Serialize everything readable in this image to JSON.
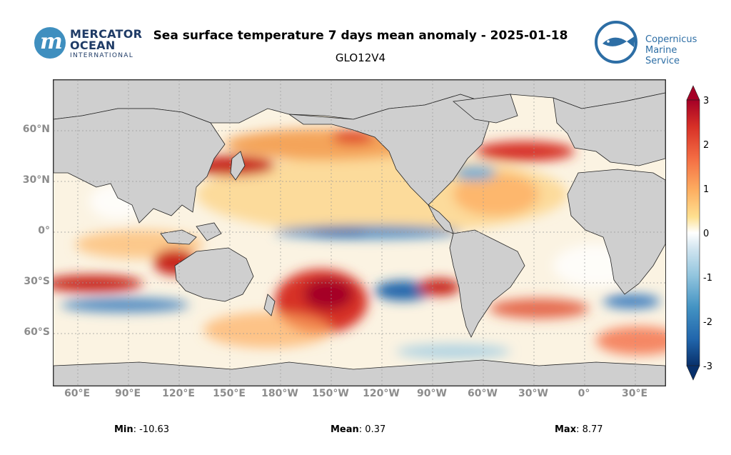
{
  "header": {
    "title": "Sea surface temperature 7 days mean anomaly - 2025-01-18",
    "subtitle": "GLO12V4"
  },
  "logos": {
    "mercator": {
      "line1": "MERCATOR",
      "line2": "OCEAN",
      "line3": "INTERNATIONAL"
    },
    "copernicus": {
      "line1": "Copernicus",
      "line2": "Marine Service"
    }
  },
  "map": {
    "latitude_labels": [
      "60°N",
      "30°N",
      "0°",
      "30°S",
      "60°S"
    ],
    "longitude_labels": [
      "60°E",
      "90°E",
      "120°E",
      "150°E",
      "180°W",
      "150°W",
      "120°W",
      "90°W",
      "60°W",
      "30°W",
      "0°",
      "30°E"
    ]
  },
  "colorbar": {
    "ticks": [
      "3",
      "2",
      "1",
      "0",
      "-1",
      "-2",
      "-3"
    ],
    "colors": [
      "#08306b",
      "#2166ac",
      "#4393c3",
      "#92c5de",
      "#d1e5f0",
      "#ffffff",
      "#fee090",
      "#fdae61",
      "#f46d43",
      "#d73027",
      "#a50026"
    ]
  },
  "stats": {
    "min_label": "Min",
    "min_value": ": -10.63",
    "mean_label": "Mean",
    "mean_value": ": 0.37",
    "max_label": "Max",
    "max_value": ": 8.77"
  },
  "colors": {
    "land": "#cfcfcf",
    "warm": "#d73027",
    "cool": "#2166ac",
    "tick_text": "#8c8c8c"
  }
}
